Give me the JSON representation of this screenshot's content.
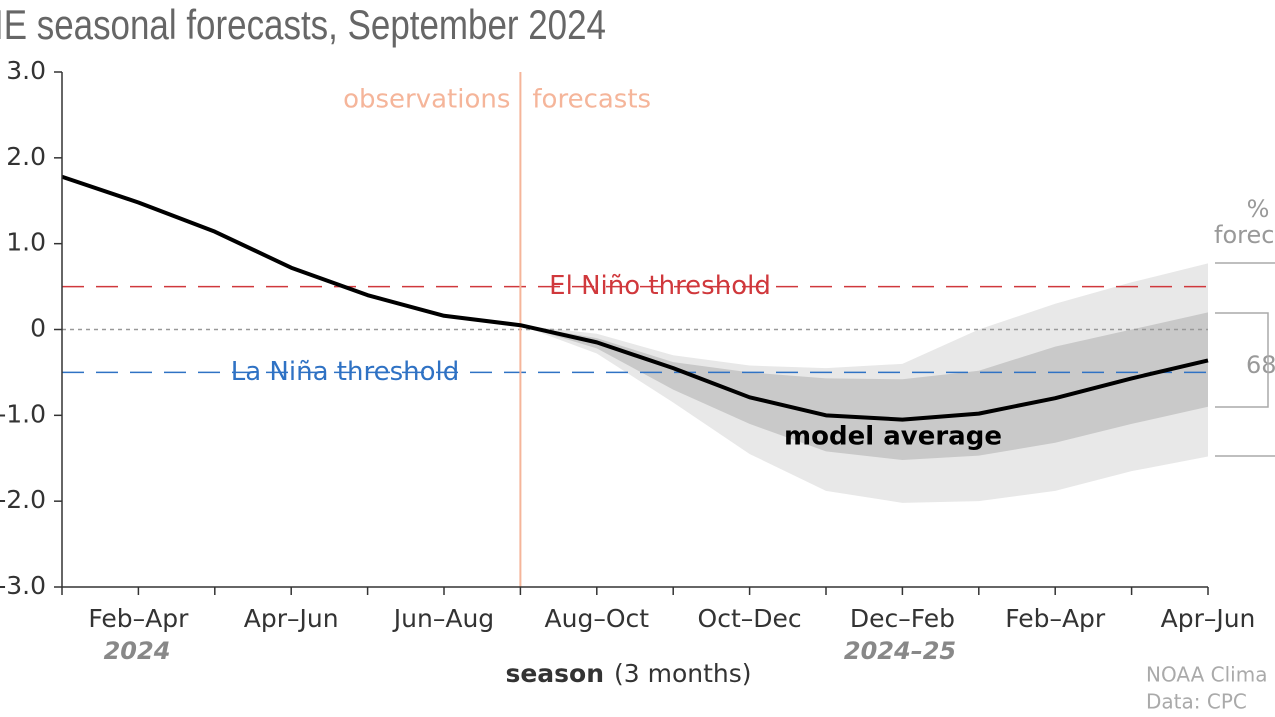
{
  "chart_data": {
    "type": "line",
    "title": "IE seasonal forecasts, September 2024",
    "categories": [
      null,
      "Feb–Apr",
      null,
      "Apr–Jun",
      null,
      "Jun–Aug",
      null,
      "Aug–Oct",
      null,
      "Oct–Dec",
      null,
      "Dec–Feb",
      null,
      "Feb–Apr",
      null,
      "Apr–Jun"
    ],
    "year_labels": [
      "2024",
      "2024–25"
    ],
    "xlabel": {
      "bold": "season",
      "rest": "(3 months)"
    },
    "series": [
      {
        "name": "model average",
        "color": "#000000",
        "values": [
          1.78,
          1.48,
          1.14,
          0.72,
          0.4,
          0.16,
          0.05,
          -0.15,
          -0.45,
          -0.79,
          -1.0,
          -1.05,
          -0.98,
          -0.8,
          -0.57,
          -0.36
        ]
      }
    ],
    "bands": [
      {
        "color": "#e8e8e8",
        "lower": [
          null,
          null,
          null,
          null,
          null,
          null,
          0.05,
          -0.28,
          -0.85,
          -1.45,
          -1.88,
          -2.02,
          -2.0,
          -1.88,
          -1.65,
          -1.48
        ],
        "upper": [
          null,
          null,
          null,
          null,
          null,
          null,
          0.05,
          -0.05,
          -0.3,
          -0.42,
          -0.45,
          -0.4,
          0.0,
          0.3,
          0.55,
          0.77
        ]
      },
      {
        "color": "#c9c9c9",
        "lower": [
          null,
          null,
          null,
          null,
          null,
          null,
          0.05,
          -0.22,
          -0.7,
          -1.1,
          -1.42,
          -1.52,
          -1.47,
          -1.32,
          -1.1,
          -0.9
        ],
        "upper": [
          null,
          null,
          null,
          null,
          null,
          null,
          0.05,
          -0.1,
          -0.38,
          -0.5,
          -0.57,
          -0.58,
          -0.48,
          -0.2,
          0.0,
          0.2
        ]
      }
    ],
    "thresholds": [
      {
        "value": 0.5,
        "label": "El Niño threshold",
        "color": "#d0383c"
      },
      {
        "value": -0.5,
        "label": "La Niña threshold",
        "color": "#2f72c4"
      }
    ],
    "zero_line": 0,
    "divider_labels": [
      "observations",
      "forecasts"
    ],
    "divider_color": "#f5b59a",
    "side_labels": [
      "%",
      "forec",
      "68"
    ],
    "source": [
      "NOAA Clima",
      "Data: CPC"
    ],
    "ylim": [
      -3,
      3
    ],
    "yticks": [
      {
        "value": 3,
        "label": "3.0"
      },
      {
        "value": 2,
        "label": "2.0"
      },
      {
        "value": 1,
        "label": "1.0"
      },
      0,
      {
        "value": -1,
        "label": "-1.0"
      },
      {
        "value": -2,
        "label": "-2.0"
      },
      {
        "value": -3,
        "label": "-3.0"
      }
    ]
  }
}
